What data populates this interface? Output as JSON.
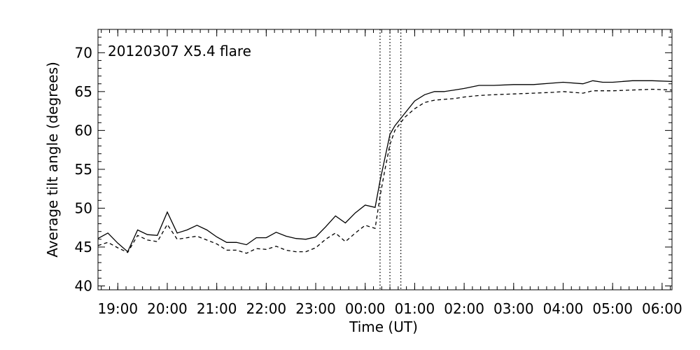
{
  "chart_data": {
    "type": "line",
    "annotation": "20120307  X5.4 flare",
    "xlabel": "Time (UT)",
    "ylabel": "Average tilt angle (degrees)",
    "x_unit": "hours since 2012-03-06 00:00 UT",
    "xlim": [
      18.6,
      30.2
    ],
    "ylim": [
      39.5,
      73
    ],
    "grid": false,
    "legend": "none",
    "x_ticks": [
      {
        "value": 19,
        "label": "19:00"
      },
      {
        "value": 20,
        "label": "20:00"
      },
      {
        "value": 21,
        "label": "21:00"
      },
      {
        "value": 22,
        "label": "22:00"
      },
      {
        "value": 23,
        "label": "23:00"
      },
      {
        "value": 24,
        "label": "00:00"
      },
      {
        "value": 25,
        "label": "01:00"
      },
      {
        "value": 26,
        "label": "02:00"
      },
      {
        "value": 27,
        "label": "03:00"
      },
      {
        "value": 28,
        "label": "04:00"
      },
      {
        "value": 29,
        "label": "05:00"
      },
      {
        "value": 30,
        "label": "06:00"
      }
    ],
    "y_ticks": [
      {
        "value": 40,
        "label": "40"
      },
      {
        "value": 45,
        "label": "45"
      },
      {
        "value": 50,
        "label": "50"
      },
      {
        "value": 55,
        "label": "55"
      },
      {
        "value": 60,
        "label": "60"
      },
      {
        "value": 65,
        "label": "65"
      },
      {
        "value": 70,
        "label": "70"
      }
    ],
    "vlines": [
      24.3,
      24.5,
      24.72
    ],
    "series": [
      {
        "style": "solid",
        "x": [
          18.6,
          18.8,
          19.0,
          19.2,
          19.4,
          19.6,
          19.8,
          20.0,
          20.2,
          20.4,
          20.6,
          20.8,
          21.0,
          21.2,
          21.4,
          21.6,
          21.8,
          22.0,
          22.2,
          22.4,
          22.6,
          22.8,
          23.0,
          23.2,
          23.4,
          23.6,
          23.8,
          24.0,
          24.2,
          24.3,
          24.4,
          24.5,
          24.6,
          24.8,
          25.0,
          25.2,
          25.4,
          25.6,
          25.8,
          26.0,
          26.3,
          26.6,
          27.0,
          27.4,
          27.8,
          28.0,
          28.4,
          28.6,
          28.8,
          29.0,
          29.4,
          29.8,
          30.2
        ],
        "values": [
          46.1,
          46.8,
          45.5,
          44.4,
          47.2,
          46.6,
          46.5,
          49.5,
          46.8,
          47.2,
          47.8,
          47.2,
          46.3,
          45.6,
          45.6,
          45.3,
          46.2,
          46.2,
          46.9,
          46.4,
          46.1,
          46.0,
          46.3,
          47.6,
          49.0,
          48.1,
          49.4,
          50.4,
          50.1,
          53.5,
          56.5,
          59.5,
          60.6,
          62.2,
          63.8,
          64.6,
          65.0,
          65.0,
          65.2,
          65.4,
          65.8,
          65.8,
          65.9,
          65.9,
          66.1,
          66.2,
          66.0,
          66.4,
          66.2,
          66.2,
          66.4,
          66.4,
          66.3
        ]
      },
      {
        "style": "dashed",
        "x": [
          18.6,
          18.8,
          19.0,
          19.2,
          19.4,
          19.6,
          19.8,
          20.0,
          20.2,
          20.4,
          20.6,
          20.8,
          21.0,
          21.2,
          21.4,
          21.6,
          21.8,
          22.0,
          22.2,
          22.4,
          22.6,
          22.8,
          23.0,
          23.2,
          23.4,
          23.6,
          23.8,
          24.0,
          24.2,
          24.3,
          24.4,
          24.5,
          24.6,
          24.8,
          25.0,
          25.2,
          25.4,
          25.6,
          25.8,
          26.0,
          26.3,
          26.6,
          27.0,
          27.4,
          27.8,
          28.0,
          28.4,
          28.6,
          28.8,
          29.0,
          29.4,
          29.8,
          30.2
        ],
        "values": [
          45.2,
          45.6,
          44.9,
          44.3,
          46.5,
          45.9,
          45.7,
          47.9,
          46.0,
          46.2,
          46.4,
          45.9,
          45.4,
          44.6,
          44.6,
          44.2,
          44.8,
          44.7,
          45.1,
          44.6,
          44.4,
          44.4,
          44.9,
          46.0,
          46.8,
          45.7,
          46.8,
          47.8,
          47.4,
          51.5,
          55.0,
          58.2,
          60.0,
          61.7,
          62.8,
          63.6,
          63.9,
          64.0,
          64.1,
          64.3,
          64.5,
          64.6,
          64.7,
          64.8,
          64.9,
          65.0,
          64.8,
          65.1,
          65.1,
          65.1,
          65.2,
          65.3,
          65.2
        ]
      }
    ]
  }
}
